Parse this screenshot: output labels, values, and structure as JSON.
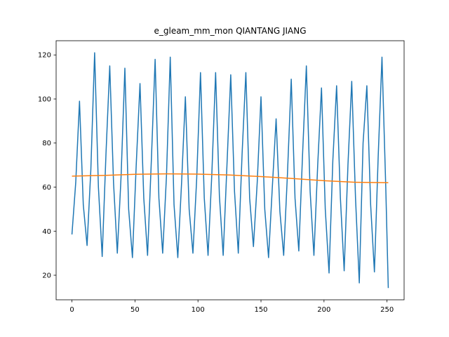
{
  "chart_data": {
    "type": "line",
    "title": "e_gleam_mm_mon QIANTANG JIANG",
    "xlim": [
      -12.55,
      263.55
    ],
    "ylim": [
      8.85,
      126.45
    ],
    "xticks": [
      0,
      50,
      100,
      150,
      200,
      250
    ],
    "yticks": [
      20,
      40,
      60,
      80,
      100,
      120
    ],
    "series": [
      {
        "color": "#1f77b4",
        "x": [
          0,
          3,
          6,
          9,
          12,
          15,
          18,
          21,
          24,
          27,
          30,
          33,
          36,
          39,
          42,
          45,
          48,
          51,
          54,
          57,
          60,
          63,
          66,
          69,
          72,
          75,
          78,
          81,
          84,
          87,
          90,
          93,
          96,
          99,
          102,
          105,
          108,
          111,
          114,
          117,
          120,
          123,
          126,
          129,
          132,
          135,
          138,
          141,
          144,
          147,
          150,
          153,
          156,
          159,
          162,
          165,
          168,
          171,
          174,
          177,
          180,
          183,
          186,
          189,
          192,
          195,
          198,
          201,
          204,
          207,
          210,
          213,
          216,
          219,
          222,
          225,
          228,
          231,
          234,
          237,
          240,
          243,
          246,
          249,
          251
        ],
        "values": [
          38.5,
          62,
          99,
          52,
          33.5,
          68,
          121,
          60,
          28.5,
          75,
          115,
          62,
          30,
          65,
          114,
          50,
          28,
          70,
          107,
          55,
          29,
          72,
          118,
          55,
          30,
          65,
          119,
          52,
          28,
          62,
          101,
          50,
          30,
          64,
          112,
          55,
          29,
          66,
          112,
          56,
          29,
          70,
          111,
          58,
          30,
          75,
          112,
          55,
          33,
          62,
          101,
          50,
          28,
          60,
          91,
          49,
          29,
          66,
          109,
          55,
          31,
          75,
          115,
          58,
          29,
          70,
          105,
          50,
          21,
          72,
          106,
          55,
          22,
          70,
          108,
          55,
          16.5,
          80,
          106,
          52,
          21.5,
          74,
          119,
          60,
          14.2
        ]
      },
      {
        "color": "#ff7f0e",
        "x": [
          0,
          25,
          50,
          75,
          100,
          125,
          150,
          175,
          200,
          225,
          251
        ],
        "values": [
          65,
          65.3,
          65.8,
          66,
          65.9,
          65.5,
          64.8,
          63.9,
          62.9,
          62.2,
          62
        ]
      }
    ]
  }
}
